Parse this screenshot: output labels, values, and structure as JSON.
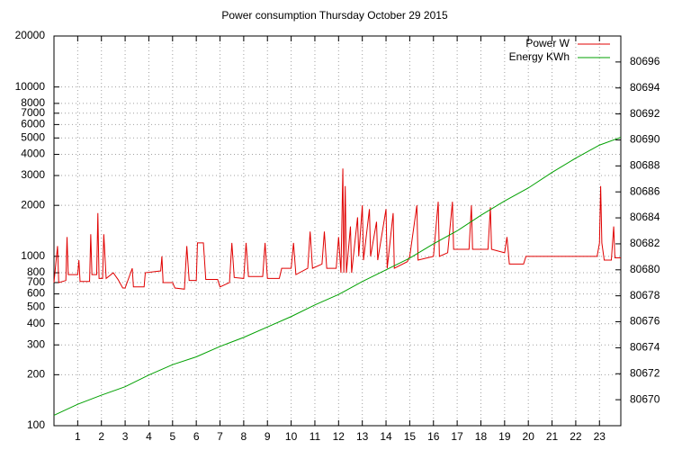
{
  "chart_data": {
    "type": "line",
    "title": "Power consumption Thursday October 29 2015",
    "xlim": [
      0,
      23.9
    ],
    "xticks": [
      1,
      2,
      3,
      4,
      5,
      6,
      7,
      8,
      9,
      10,
      11,
      12,
      13,
      14,
      15,
      16,
      17,
      18,
      19,
      20,
      21,
      22,
      23
    ],
    "ylim": [
      100,
      20000
    ],
    "yscale": "log",
    "yticks": [
      100,
      200,
      300,
      400,
      500,
      600,
      700,
      800,
      1000,
      2000,
      3000,
      4000,
      5000,
      6000,
      7000,
      8000,
      10000,
      20000
    ],
    "y2lim": [
      80668,
      80698
    ],
    "y2ticks": [
      80670,
      80672,
      80674,
      80676,
      80678,
      80680,
      80682,
      80684,
      80686,
      80688,
      80690,
      80692,
      80694,
      80696
    ],
    "grid": true,
    "legend_position": "top-right",
    "series": [
      {
        "name": "Power W",
        "color": "#e00000",
        "x": [
          0,
          0.15,
          0.2,
          0.5,
          0.55,
          0.6,
          1.0,
          1.05,
          1.1,
          1.5,
          1.55,
          1.6,
          1.8,
          1.85,
          1.9,
          2.05,
          2.1,
          2.2,
          2.5,
          2.7,
          2.9,
          3.0,
          3.3,
          3.35,
          3.5,
          3.8,
          3.85,
          4.5,
          4.55,
          4.6,
          5.0,
          5.1,
          5.5,
          5.6,
          5.7,
          6.0,
          6.05,
          6.3,
          6.4,
          6.9,
          7.0,
          7.4,
          7.5,
          7.6,
          8.0,
          8.1,
          8.2,
          8.8,
          8.9,
          9.0,
          9.5,
          9.6,
          10.0,
          10.1,
          10.2,
          10.7,
          10.8,
          10.9,
          11.3,
          11.4,
          11.5,
          11.9,
          12.0,
          12.1,
          12.18,
          12.22,
          12.28,
          12.33,
          12.5,
          12.55,
          12.8,
          12.85,
          13.0,
          13.05,
          13.3,
          13.35,
          13.6,
          13.65,
          14.0,
          14.05,
          14.3,
          14.35,
          14.9,
          15.0,
          15.3,
          15.35,
          16.0,
          16.2,
          16.25,
          16.6,
          16.8,
          16.85,
          17.5,
          17.6,
          17.65,
          18.3,
          18.4,
          18.45,
          19.0,
          19.1,
          19.2,
          19.8,
          19.9,
          22.9,
          23.0,
          23.05,
          23.1,
          23.2,
          23.5,
          23.6,
          23.65,
          23.9
        ],
        "values": [
          700,
          1150,
          700,
          720,
          1300,
          780,
          780,
          950,
          710,
          710,
          1350,
          780,
          780,
          1800,
          740,
          740,
          1350,
          740,
          800,
          730,
          650,
          650,
          850,
          660,
          660,
          660,
          800,
          820,
          1000,
          700,
          700,
          650,
          640,
          1150,
          720,
          720,
          1200,
          1200,
          730,
          730,
          660,
          700,
          1200,
          750,
          740,
          1200,
          760,
          760,
          1200,
          740,
          740,
          850,
          850,
          1200,
          780,
          850,
          1400,
          850,
          900,
          1400,
          850,
          850,
          1300,
          800,
          3300,
          800,
          2600,
          800,
          1500,
          800,
          1700,
          1000,
          2000,
          950,
          1900,
          1000,
          1600,
          950,
          1900,
          850,
          1800,
          850,
          930,
          1000,
          2000,
          950,
          1000,
          2100,
          1000,
          1050,
          2100,
          1100,
          1100,
          2000,
          1100,
          1100,
          1950,
          1100,
          1050,
          1300,
          900,
          900,
          1000,
          1000,
          1200,
          2600,
          1200,
          950,
          950,
          1500,
          980,
          980
        ]
      },
      {
        "name": "Energy KWh",
        "color": "#00a000",
        "axis": "y2",
        "x": [
          0,
          1,
          2,
          3,
          4,
          5,
          6,
          7,
          8,
          9,
          10,
          11,
          12,
          13,
          14,
          15,
          16,
          17,
          18,
          19,
          20,
          21,
          22,
          23,
          23.9
        ],
        "values": [
          80668.8,
          80669.65,
          80670.35,
          80671.0,
          80671.9,
          80672.7,
          80673.3,
          80674.1,
          80674.8,
          80675.6,
          80676.4,
          80677.3,
          80678.1,
          80679.1,
          80680.0,
          80680.9,
          80682.0,
          80683.0,
          80684.2,
          80685.3,
          80686.3,
          80687.5,
          80688.6,
          80689.6,
          80690.2
        ]
      }
    ]
  }
}
